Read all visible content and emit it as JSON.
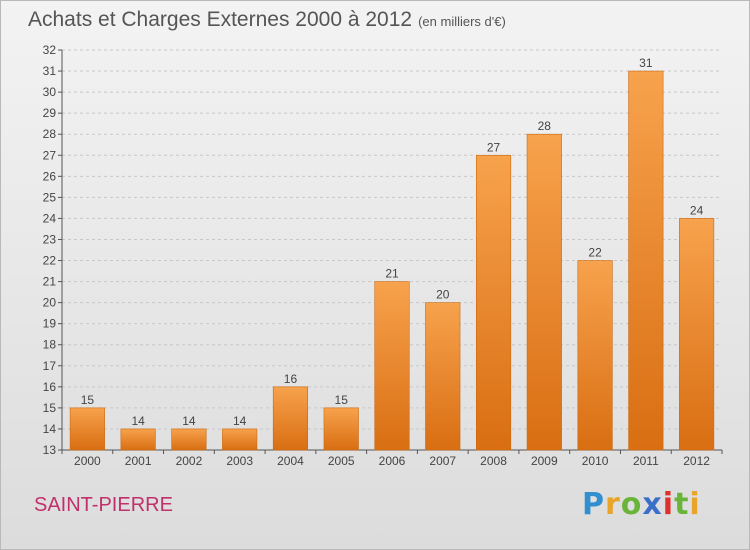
{
  "header": {
    "title": "Achats et Charges Externes 2000 à 2012",
    "unit": "(en milliers d'€)"
  },
  "footer": {
    "place": "SAINT-PIERRE",
    "logo": [
      "P",
      "r",
      "o",
      "x",
      "i",
      "t",
      "i"
    ]
  },
  "chart_data": {
    "type": "bar",
    "title": "Achats et Charges Externes 2000 à 2012",
    "subtitle": "(en milliers d'€)",
    "categories": [
      "2000",
      "2001",
      "2002",
      "2003",
      "2004",
      "2005",
      "2006",
      "2007",
      "2008",
      "2009",
      "2010",
      "2011",
      "2012"
    ],
    "values": [
      15,
      14,
      14,
      14,
      16,
      15,
      21,
      20,
      27,
      28,
      22,
      31,
      24
    ],
    "ylim": [
      13,
      32
    ],
    "yticks": [
      13,
      14,
      15,
      16,
      17,
      18,
      19,
      20,
      21,
      22,
      23,
      24,
      25,
      26,
      27,
      28,
      29,
      30,
      31,
      32
    ],
    "grid": true,
    "bar_color": "#f08a2a",
    "bar_color_light": "#f7a24d",
    "bar_color_dark": "#d96e12"
  }
}
